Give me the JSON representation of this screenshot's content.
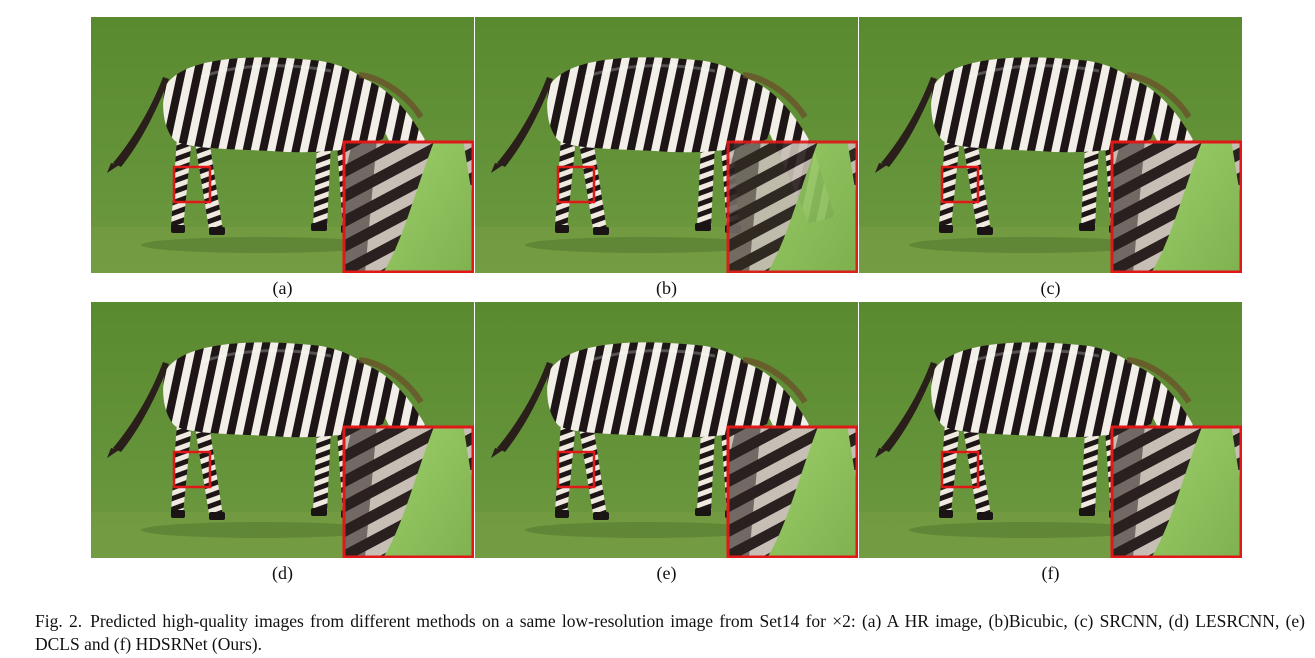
{
  "figure": {
    "label": "Fig. 2.",
    "caption": "Predicted high-quality images from different methods on a same low-resolution image from Set14 for ×2: (a) A HR image, (b)Bicubic, (c) SRCNN, (d) LESRCNN, (e) DCLS and (f) HDSRNet (Ours).",
    "panels": [
      {
        "label": "(a)",
        "method": "A HR image"
      },
      {
        "label": "(b)",
        "method": "Bicubic"
      },
      {
        "label": "(c)",
        "method": "SRCNN"
      },
      {
        "label": "(d)",
        "method": "LESRCNN"
      },
      {
        "label": "(e)",
        "method": "DCLS"
      },
      {
        "label": "(f)",
        "method": "HDSRNet (Ours)"
      }
    ]
  },
  "colors": {
    "grass": "#5f8a33",
    "grass_dark": "#4f7a2a",
    "zebra_dark": "#1e1616",
    "zebra_light": "#f2efe8",
    "zoom_box": "#e01818"
  },
  "icons": {
    "subject": "zebra-icon",
    "zoom_inset": "magnified-crop-icon",
    "region": "zoom-region-box-icon"
  }
}
